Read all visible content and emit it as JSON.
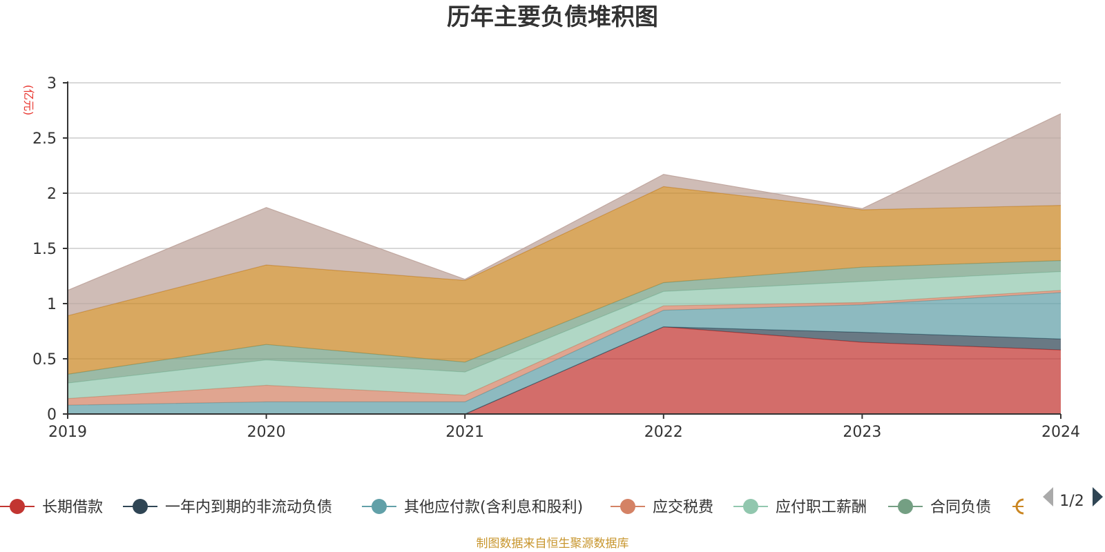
{
  "chart_data": {
    "type": "area",
    "stacked": true,
    "title": "历年主要负债堆积图",
    "unit_label": "(亿元)",
    "x": [
      "2019",
      "2020",
      "2021",
      "2022",
      "2023",
      "2024"
    ],
    "ylim": [
      0,
      3
    ],
    "y_ticks": [
      "0",
      "0.5",
      "1",
      "1.5",
      "2",
      "2.5",
      "3"
    ],
    "grid": true,
    "series": [
      {
        "name": "长期借款",
        "color": "#c23531",
        "values": [
          0,
          0,
          0,
          0.79,
          0.65,
          0.58
        ]
      },
      {
        "name": "一年内到期的非流动负债",
        "color": "#2f4554",
        "values": [
          0,
          0,
          0,
          0,
          0.09,
          0.1
        ]
      },
      {
        "name": "其他应付款(含利息和股利)",
        "color": "#61a0a8",
        "values": [
          0.08,
          0.11,
          0.11,
          0.15,
          0.25,
          0.42
        ]
      },
      {
        "name": "应交税费",
        "color": "#d48265",
        "values": [
          0.06,
          0.15,
          0.06,
          0.04,
          0.02,
          0.02
        ]
      },
      {
        "name": "应付职工薪酬",
        "color": "#91c7ae",
        "values": [
          0.14,
          0.23,
          0.21,
          0.13,
          0.19,
          0.17
        ]
      },
      {
        "name": "合同负债",
        "color": "#749f83",
        "values": [
          0.08,
          0.14,
          0.09,
          0.08,
          0.13,
          0.1
        ]
      },
      {
        "name": "",
        "color": "#ca8622",
        "values": [
          0.53,
          0.72,
          0.74,
          0.87,
          0.52,
          0.5
        ]
      },
      {
        "name": "",
        "color": "#bda29a",
        "values": [
          0.23,
          0.52,
          0.01,
          0.11,
          0.01,
          0.83
        ]
      }
    ],
    "legend": {
      "placement": "bottom",
      "visible_items": [
        "长期借款",
        "一年内到期的非流动负债",
        "其他应付款(含利息和股利)",
        "应交税费",
        "应付职工薪酬",
        "合同负债"
      ],
      "page": "1/2"
    }
  },
  "footer": {
    "source": "制图数据来自恒生聚源数据库"
  },
  "icons": {
    "prev": "triangle-left-icon",
    "next": "triangle-right-icon"
  },
  "colors": {
    "axis": "#333333",
    "grid": "#cccccc",
    "unit": "#e8352e",
    "source": "#c8962e",
    "pager_active": "#2f4554",
    "pager_inactive": "#aaaaaa"
  }
}
